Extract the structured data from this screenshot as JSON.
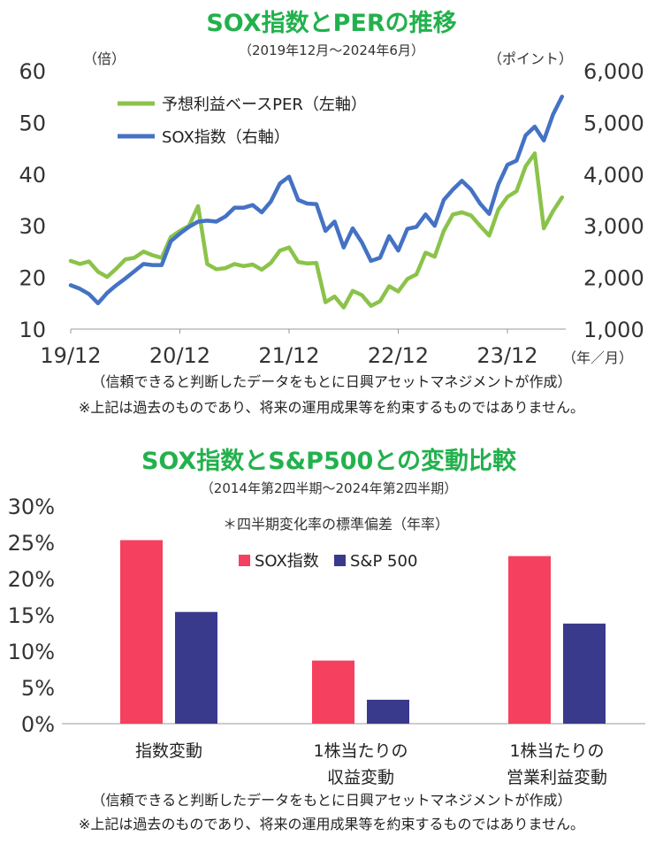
{
  "colors": {
    "title_green": "#22b14c",
    "per_line": "#8bc34a",
    "sox_line": "#4472c4",
    "sox_bar": "#f5405f",
    "sp_bar": "#3a3a8c",
    "axis_text": "#333333"
  },
  "chart1": {
    "title": "SOX指数とPERの推移",
    "subtitle": "（2019年12月～2024年6月）",
    "left_unit": "（倍）",
    "right_unit": "（ポイント）",
    "x_unit": "（年／月）",
    "source": "（信頼できると判断したデータをもとに日興アセットマネジメントが作成）",
    "disclaimer": "※上記は過去のものであり、将来の運用成果等を約束するものではありません。"
  },
  "chart2": {
    "title": "SOX指数とS&P500との変動比較",
    "subtitle": "（2014年第2四半期～2024年第2四半期）",
    "note": "＊四半期変化率の標準偏差（年率）",
    "source": "（信頼できると判断したデータをもとに日興アセットマネジメントが作成）",
    "disclaimer": "※上記は過去のものであり、将来の運用成果等を約束するものではありません。"
  },
  "chart_data": [
    {
      "type": "line",
      "x_tick_labels": [
        "19/12",
        "20/12",
        "21/12",
        "22/12",
        "23/12"
      ],
      "x_range": [
        "2019-12",
        "2024-06"
      ],
      "left_axis": {
        "range": [
          10,
          60
        ],
        "ticks": [
          "10",
          "20",
          "30",
          "40",
          "50",
          "60"
        ]
      },
      "right_axis": {
        "range": [
          1000,
          6000
        ],
        "ticks": [
          "1,000",
          "2,000",
          "3,000",
          "4,000",
          "5,000",
          "6,000"
        ]
      },
      "legend_position": "top-left",
      "series": [
        {
          "name": "予想利益ベースPER（左軸）",
          "axis": "left",
          "color": "#8bc34a",
          "values": [
            23.2,
            22.6,
            23.1,
            21.1,
            20.1,
            21.7,
            23.5,
            23.8,
            25.0,
            24.3,
            23.8,
            27.8,
            29.0,
            30.0,
            33.8,
            22.6,
            21.6,
            21.8,
            22.6,
            22.2,
            22.5,
            21.5,
            22.8,
            25.2,
            25.8,
            23.0,
            22.7,
            22.8,
            15.2,
            16.3,
            14.2,
            17.4,
            16.6,
            14.5,
            15.4,
            18.3,
            17.3,
            19.7,
            20.6,
            24.8,
            24.0,
            29.0,
            32.2,
            32.6,
            32.0,
            30.0,
            28.1,
            33.1,
            35.6,
            36.7,
            41.5,
            44.0,
            29.5,
            32.8,
            35.5
          ]
        },
        {
          "name": "SOX指数（右軸）",
          "axis": "right",
          "color": "#4472c4",
          "values": [
            1850,
            1780,
            1680,
            1500,
            1700,
            1850,
            1980,
            2120,
            2260,
            2240,
            2240,
            2700,
            2850,
            2980,
            3080,
            3100,
            3080,
            3180,
            3350,
            3350,
            3400,
            3260,
            3470,
            3820,
            3950,
            3500,
            3430,
            3420,
            2900,
            3080,
            2580,
            2950,
            2680,
            2320,
            2380,
            2800,
            2520,
            2940,
            2980,
            3220,
            3000,
            3500,
            3700,
            3870,
            3700,
            3430,
            3230,
            3800,
            4180,
            4260,
            4750,
            4920,
            4650,
            5150,
            5500
          ]
        }
      ]
    },
    {
      "type": "bar",
      "categories": [
        "指数変動",
        "1株当たりの収益変動",
        "1株当たりの営業利益変動"
      ],
      "category_lines": [
        [
          "指数変動"
        ],
        [
          "1株当たりの",
          "収益変動"
        ],
        [
          "1株当たりの",
          "営業利益変動"
        ]
      ],
      "ylim": [
        0,
        30
      ],
      "y_ticks": [
        "0%",
        "5%",
        "10%",
        "15%",
        "20%",
        "25%",
        "30%"
      ],
      "legend_position": "top-center",
      "series": [
        {
          "name": "SOX指数",
          "color": "#f5405f",
          "values": [
            25.3,
            8.7,
            23.1
          ]
        },
        {
          "name": "S&P 500",
          "color": "#3a3a8c",
          "values": [
            15.4,
            3.3,
            13.8
          ]
        }
      ]
    }
  ]
}
